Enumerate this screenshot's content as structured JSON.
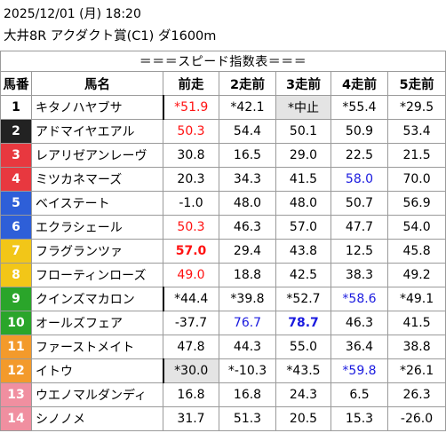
{
  "header": {
    "line1": "2025/12/01 (月) 18:20",
    "line2": "大井8R アクダクト賞(C1) ダ1600m"
  },
  "table": {
    "banner": "＝＝＝スピード指数表＝＝＝",
    "columns": [
      "馬番",
      "馬名",
      "前走",
      "2走前",
      "3走前",
      "4走前",
      "5走前"
    ],
    "rows": [
      {
        "num": "1",
        "bg": "#ffffff",
        "fg": "#000000",
        "name": "キタノハヤブサ",
        "mark": true,
        "cells": [
          {
            "v": "*51.9",
            "c": "red"
          },
          {
            "v": "*42.1"
          },
          {
            "v": "*中止",
            "g": true
          },
          {
            "v": "*55.4"
          },
          {
            "v": "*29.5"
          }
        ]
      },
      {
        "num": "2",
        "bg": "#222222",
        "fg": "#ffffff",
        "name": "アドマイヤエアル",
        "cells": [
          {
            "v": "50.3",
            "c": "red"
          },
          {
            "v": "54.4"
          },
          {
            "v": "50.1"
          },
          {
            "v": "50.9"
          },
          {
            "v": "53.4"
          }
        ]
      },
      {
        "num": "3",
        "bg": "#e8383f",
        "fg": "#ffffff",
        "name": "レアリゼアンレーヴ",
        "cells": [
          {
            "v": "30.8"
          },
          {
            "v": "16.5"
          },
          {
            "v": "29.0"
          },
          {
            "v": "22.5"
          },
          {
            "v": "21.5"
          }
        ]
      },
      {
        "num": "4",
        "bg": "#e8383f",
        "fg": "#ffffff",
        "name": "ミツカネマーズ",
        "cells": [
          {
            "v": "20.3"
          },
          {
            "v": "34.3"
          },
          {
            "v": "41.5"
          },
          {
            "v": "58.0",
            "c": "blue"
          },
          {
            "v": "70.0"
          }
        ]
      },
      {
        "num": "5",
        "bg": "#2e5fd8",
        "fg": "#ffffff",
        "name": "ベイステート",
        "cells": [
          {
            "v": "-1.0"
          },
          {
            "v": "48.0"
          },
          {
            "v": "48.0"
          },
          {
            "v": "50.7"
          },
          {
            "v": "56.9"
          }
        ]
      },
      {
        "num": "6",
        "bg": "#2e5fd8",
        "fg": "#ffffff",
        "name": "エクラシェール",
        "cells": [
          {
            "v": "50.3",
            "c": "red"
          },
          {
            "v": "46.3"
          },
          {
            "v": "57.0"
          },
          {
            "v": "47.7"
          },
          {
            "v": "54.0"
          }
        ]
      },
      {
        "num": "7",
        "bg": "#f2c618",
        "fg": "#ffffff",
        "name": "フラグランツァ",
        "cells": [
          {
            "v": "57.0",
            "c": "red",
            "b": true
          },
          {
            "v": "29.4"
          },
          {
            "v": "43.8"
          },
          {
            "v": "12.5"
          },
          {
            "v": "45.8"
          }
        ]
      },
      {
        "num": "8",
        "bg": "#f2c618",
        "fg": "#ffffff",
        "name": "フローティンローズ",
        "cells": [
          {
            "v": "49.0",
            "c": "red"
          },
          {
            "v": "18.8"
          },
          {
            "v": "42.5"
          },
          {
            "v": "38.3"
          },
          {
            "v": "49.2"
          }
        ]
      },
      {
        "num": "9",
        "bg": "#2aa52a",
        "fg": "#ffffff",
        "name": "クインズマカロン",
        "mark": true,
        "cells": [
          {
            "v": "*44.4"
          },
          {
            "v": "*39.8"
          },
          {
            "v": "*52.7"
          },
          {
            "v": "*58.6",
            "c": "blue"
          },
          {
            "v": "*49.1"
          }
        ]
      },
      {
        "num": "10",
        "bg": "#2aa52a",
        "fg": "#ffffff",
        "name": "オールズフェア",
        "cells": [
          {
            "v": "-37.7"
          },
          {
            "v": "76.7",
            "c": "blue"
          },
          {
            "v": "78.7",
            "c": "blue",
            "b": true
          },
          {
            "v": "46.3"
          },
          {
            "v": "41.5"
          }
        ]
      },
      {
        "num": "11",
        "bg": "#f39a2b",
        "fg": "#ffffff",
        "name": "ファーストメイト",
        "cells": [
          {
            "v": "47.8"
          },
          {
            "v": "44.3"
          },
          {
            "v": "55.0"
          },
          {
            "v": "36.4"
          },
          {
            "v": "38.8"
          }
        ]
      },
      {
        "num": "12",
        "bg": "#f39a2b",
        "fg": "#ffffff",
        "name": "イトウ",
        "mark": true,
        "cells": [
          {
            "v": "*30.0",
            "g": true
          },
          {
            "v": "*-10.3"
          },
          {
            "v": "*43.5"
          },
          {
            "v": "*59.8",
            "c": "blue"
          },
          {
            "v": "*26.1"
          }
        ]
      },
      {
        "num": "13",
        "bg": "#f08fa0",
        "fg": "#ffffff",
        "name": "ウエノマルダンディ",
        "cells": [
          {
            "v": "16.8"
          },
          {
            "v": "16.8"
          },
          {
            "v": "24.3"
          },
          {
            "v": "6.5"
          },
          {
            "v": "26.3"
          }
        ]
      },
      {
        "num": "14",
        "bg": "#f08fa0",
        "fg": "#ffffff",
        "name": "シノノメ",
        "cells": [
          {
            "v": "31.7"
          },
          {
            "v": "51.3"
          },
          {
            "v": "20.5"
          },
          {
            "v": "15.3"
          },
          {
            "v": "-26.0"
          }
        ]
      }
    ]
  }
}
